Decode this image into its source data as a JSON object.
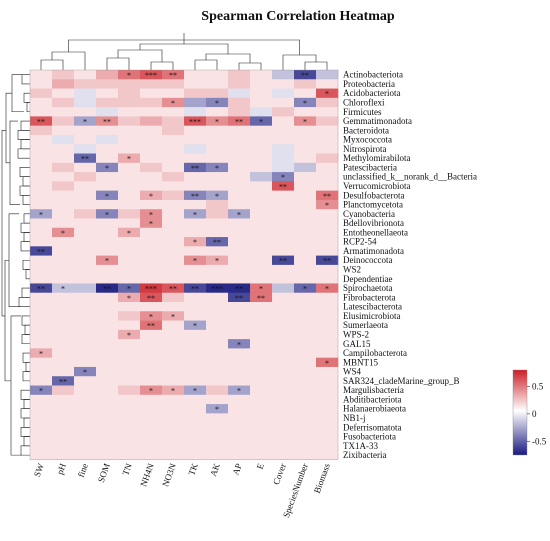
{
  "chart_data": {
    "type": "heatmap",
    "title": "Spearman Correlation Heatmap",
    "columns": [
      "SW",
      "pH",
      "fine",
      "SOM",
      "TN",
      "NH4N",
      "NO3N",
      "TK",
      "AK",
      "AP",
      "E",
      "Cover",
      "SpeciesNumber",
      "Biomass"
    ],
    "rows": [
      "Actinobacteriota",
      "Proteobacteria",
      "Acidobacteriota",
      "Chloroflexi",
      "Firmicutes",
      "Gemmatimonadota",
      "Bacteroidota",
      "Myxococcota",
      "Nitrospirota",
      "Methylomirabilota",
      "Patescibacteria",
      "unclassified_k__norank_d__Bacteria",
      "Verrucomicrobiota",
      "Desulfobacterota",
      "Planctomycetota",
      "Cyanobacteria",
      "Bdellovibrionota",
      "Entotheonellaeota",
      "RCP2-54",
      "Armatimonadota",
      "Deinococcota",
      "WS2",
      "Dependentiae",
      "Spirochaetota",
      "Fibrobacterota",
      "Latescibacterota",
      "Elusimicrobiota",
      "Sumerlaeota",
      "WPS-2",
      "GAL15",
      "Campilobacterota",
      "MBNT15",
      "WS4",
      "SAR324_cladeMarine_group_B",
      "Margulisbacteria",
      "Abditibacteriota",
      "Halanaerobiaeota",
      "NB1-j",
      "Deferrisomatota",
      "Fusobacteriota",
      "TX1A-33",
      "Zixibacteria"
    ],
    "values": [
      [
        0.1,
        0.2,
        0.1,
        0.3,
        0.5,
        0.6,
        0.5,
        0.1,
        0.1,
        0.2,
        0.1,
        -0.2,
        -0.6,
        -0.2
      ],
      [
        0.1,
        0.3,
        0.2,
        0.2,
        0.2,
        0.2,
        0.2,
        0.1,
        0.1,
        0.2,
        0.1,
        0.1,
        0.2,
        0.1
      ],
      [
        0.2,
        0.1,
        -0.1,
        0.1,
        0.2,
        0.1,
        0.1,
        0.2,
        0.2,
        -0.1,
        0.1,
        -0.1,
        0.1,
        0.6
      ],
      [
        0.1,
        0.2,
        -0.1,
        0.2,
        0.2,
        0.2,
        0.4,
        -0.3,
        -0.4,
        0.2,
        0.1,
        0.1,
        -0.4,
        0.2
      ],
      [
        0.1,
        0.1,
        0.1,
        -0.1,
        0.1,
        0.1,
        0.1,
        -0.1,
        0.1,
        0.2,
        -0.1,
        0.2,
        0.1,
        0.1
      ],
      [
        0.6,
        0.2,
        -0.3,
        0.4,
        0.2,
        0.3,
        0.2,
        0.6,
        0.4,
        0.5,
        -0.5,
        0.1,
        0.4,
        0.2
      ],
      [
        0.2,
        0.1,
        0.1,
        0.1,
        0.1,
        0.1,
        0.2,
        0.1,
        0.1,
        0.1,
        0.1,
        0.1,
        0.1,
        0.1
      ],
      [
        0.1,
        -0.1,
        0.1,
        -0.1,
        0.1,
        0.1,
        0.1,
        0.1,
        0.1,
        0.1,
        0.1,
        0.1,
        0.1,
        0.1
      ],
      [
        0.1,
        0.1,
        -0.1,
        0.1,
        0.1,
        0.1,
        0.1,
        -0.1,
        0.1,
        0.1,
        0.1,
        -0.1,
        0.1,
        0.1
      ],
      [
        0.1,
        0.1,
        -0.5,
        0.1,
        0.3,
        0.1,
        0.1,
        0.1,
        0.1,
        0.1,
        0.1,
        -0.1,
        0.1,
        0.2
      ],
      [
        0.1,
        0.2,
        0.1,
        -0.4,
        0.1,
        0.2,
        0.1,
        -0.5,
        -0.4,
        0.1,
        0.1,
        -0.1,
        -0.2,
        0.1
      ],
      [
        0.1,
        0.1,
        0.2,
        0.1,
        0.1,
        0.1,
        0.2,
        0.1,
        0.1,
        0.1,
        -0.2,
        -0.4,
        0.1,
        0.1
      ],
      [
        0.1,
        0.2,
        0.1,
        0.1,
        0.1,
        0.1,
        0.1,
        0.1,
        0.1,
        0.1,
        0.1,
        0.6,
        0.1,
        0.1
      ],
      [
        0.1,
        0.1,
        0.1,
        -0.4,
        0.1,
        0.3,
        0.2,
        -0.4,
        -0.3,
        0.1,
        0.1,
        0.1,
        0.1,
        0.5
      ],
      [
        0.1,
        0.1,
        0.1,
        0.1,
        0.1,
        0.1,
        0.1,
        0.1,
        0.2,
        0.1,
        0.1,
        0.1,
        0.1,
        0.4
      ],
      [
        -0.3,
        0.1,
        0.2,
        -0.4,
        0.2,
        0.4,
        0.1,
        -0.3,
        0.2,
        -0.3,
        0.1,
        0.1,
        0.1,
        0.1
      ],
      [
        0.1,
        0.1,
        0.1,
        0.1,
        0.1,
        0.4,
        0.1,
        0.1,
        0.1,
        0.1,
        0.1,
        0.1,
        0.1,
        0.1
      ],
      [
        0.1,
        0.4,
        0.1,
        0.1,
        0.3,
        0.1,
        0.1,
        0.1,
        0.1,
        0.1,
        0.1,
        0.1,
        0.1,
        0.1
      ],
      [
        0.1,
        0.1,
        0.1,
        0.1,
        0.1,
        0.1,
        0.1,
        0.3,
        -0.5,
        0.1,
        0.1,
        0.1,
        0.1,
        0.1
      ],
      [
        -0.6,
        0.1,
        0.1,
        0.1,
        0.1,
        0.1,
        0.1,
        0.1,
        0.1,
        0.1,
        0.1,
        0.1,
        0.1,
        0.1
      ],
      [
        0.1,
        0.1,
        0.1,
        0.4,
        0.1,
        0.1,
        0.1,
        0.4,
        0.3,
        0.1,
        0.1,
        -0.6,
        0.1,
        -0.6
      ],
      [
        0.1,
        0.1,
        0.1,
        0.1,
        0.1,
        0.1,
        0.1,
        0.1,
        0.1,
        0.1,
        0.1,
        0.1,
        0.1,
        0.1
      ],
      [
        0.1,
        0.1,
        0.1,
        0.1,
        0.1,
        0.1,
        0.1,
        0.1,
        0.1,
        0.1,
        0.1,
        0.1,
        0.1,
        0.1
      ],
      [
        -0.6,
        -0.2,
        -0.2,
        -0.7,
        -0.5,
        0.7,
        0.6,
        -0.6,
        -0.7,
        -0.7,
        0.5,
        -0.2,
        -0.5,
        0.5
      ],
      [
        0.1,
        0.1,
        0.1,
        0.1,
        0.3,
        0.6,
        0.2,
        0.1,
        0.1,
        -0.6,
        0.5,
        0.1,
        0.1,
        0.1
      ],
      [
        0.1,
        0.1,
        0.1,
        0.1,
        0.1,
        0.1,
        0.1,
        0.1,
        0.1,
        0.1,
        0.1,
        0.1,
        0.1,
        0.1
      ],
      [
        0.1,
        0.1,
        0.1,
        0.1,
        0.2,
        0.4,
        0.3,
        0.1,
        0.1,
        0.1,
        0.1,
        0.1,
        0.1,
        0.1
      ],
      [
        0.1,
        0.1,
        0.1,
        0.1,
        0.1,
        0.5,
        0.1,
        -0.3,
        0.1,
        0.1,
        0.1,
        0.1,
        0.1,
        0.1
      ],
      [
        0.1,
        0.1,
        0.1,
        0.1,
        0.3,
        0.1,
        0.1,
        0.1,
        0.1,
        0.1,
        0.1,
        0.1,
        0.1,
        0.1
      ],
      [
        0.1,
        0.1,
        0.1,
        0.1,
        0.1,
        0.1,
        0.1,
        0.1,
        0.1,
        -0.4,
        0.1,
        0.1,
        0.1,
        0.1
      ],
      [
        0.3,
        0.1,
        0.1,
        0.1,
        0.1,
        0.1,
        0.1,
        0.1,
        0.1,
        0.1,
        0.1,
        0.1,
        0.1,
        0.1
      ],
      [
        0.1,
        0.1,
        0.1,
        0.1,
        0.1,
        0.1,
        0.1,
        0.1,
        0.1,
        0.1,
        0.1,
        0.1,
        0.1,
        0.5
      ],
      [
        0.1,
        0.1,
        -0.4,
        0.1,
        0.1,
        0.1,
        0.1,
        0.1,
        0.1,
        0.1,
        0.1,
        0.1,
        0.1,
        0.1
      ],
      [
        0.1,
        -0.5,
        0.1,
        0.1,
        0.1,
        0.1,
        0.1,
        0.1,
        0.1,
        0.1,
        0.1,
        0.1,
        0.1,
        0.1
      ],
      [
        -0.4,
        0.2,
        0.1,
        0.1,
        0.2,
        0.4,
        0.3,
        -0.3,
        0.2,
        -0.3,
        0.1,
        0.1,
        0.1,
        0.1
      ],
      [
        0.1,
        0.1,
        0.1,
        0.1,
        0.1,
        0.1,
        0.1,
        0.1,
        0.1,
        0.1,
        0.1,
        0.1,
        0.1,
        0.1
      ],
      [
        0.1,
        0.1,
        0.1,
        0.1,
        0.1,
        0.1,
        0.1,
        0.1,
        -0.3,
        0.1,
        0.1,
        0.1,
        0.1,
        0.1
      ],
      [
        0.1,
        0.1,
        0.1,
        0.1,
        0.1,
        0.1,
        0.1,
        0.1,
        0.1,
        0.1,
        0.1,
        0.1,
        0.1,
        0.1
      ],
      [
        0.1,
        0.1,
        0.1,
        0.1,
        0.1,
        0.1,
        0.1,
        0.1,
        0.1,
        0.1,
        0.1,
        0.1,
        0.1,
        0.1
      ],
      [
        0.1,
        0.1,
        0.1,
        0.1,
        0.1,
        0.1,
        0.1,
        0.1,
        0.1,
        0.1,
        0.1,
        0.1,
        0.1,
        0.1
      ],
      [
        0.1,
        0.1,
        0.1,
        0.1,
        0.1,
        0.1,
        0.1,
        0.1,
        0.1,
        0.1,
        0.1,
        0.1,
        0.1,
        0.1
      ],
      [
        0.1,
        0.1,
        0.1,
        0.1,
        0.1,
        0.1,
        0.1,
        0.1,
        0.1,
        0.1,
        0.1,
        0.1,
        0.1,
        0.1
      ]
    ],
    "significance": [
      {
        "row": 0,
        "col": 4,
        "mark": "*"
      },
      {
        "row": 0,
        "col": 5,
        "mark": "***"
      },
      {
        "row": 0,
        "col": 6,
        "mark": "**"
      },
      {
        "row": 0,
        "col": 12,
        "mark": "**"
      },
      {
        "row": 2,
        "col": 13,
        "mark": "*"
      },
      {
        "row": 3,
        "col": 6,
        "mark": "*"
      },
      {
        "row": 3,
        "col": 8,
        "mark": "*"
      },
      {
        "row": 3,
        "col": 12,
        "mark": "*"
      },
      {
        "row": 5,
        "col": 0,
        "mark": "**"
      },
      {
        "row": 5,
        "col": 2,
        "mark": "*"
      },
      {
        "row": 5,
        "col": 3,
        "mark": "**"
      },
      {
        "row": 5,
        "col": 7,
        "mark": "***"
      },
      {
        "row": 5,
        "col": 8,
        "mark": "*"
      },
      {
        "row": 5,
        "col": 9,
        "mark": "**"
      },
      {
        "row": 5,
        "col": 10,
        "mark": "*"
      },
      {
        "row": 5,
        "col": 12,
        "mark": "*"
      },
      {
        "row": 9,
        "col": 2,
        "mark": "**"
      },
      {
        "row": 9,
        "col": 4,
        "mark": "*"
      },
      {
        "row": 10,
        "col": 3,
        "mark": "*"
      },
      {
        "row": 10,
        "col": 7,
        "mark": "**"
      },
      {
        "row": 10,
        "col": 8,
        "mark": "*"
      },
      {
        "row": 11,
        "col": 11,
        "mark": "*"
      },
      {
        "row": 12,
        "col": 11,
        "mark": "**"
      },
      {
        "row": 13,
        "col": 3,
        "mark": "*"
      },
      {
        "row": 13,
        "col": 5,
        "mark": "*"
      },
      {
        "row": 13,
        "col": 7,
        "mark": "**"
      },
      {
        "row": 13,
        "col": 8,
        "mark": "*"
      },
      {
        "row": 13,
        "col": 13,
        "mark": "**"
      },
      {
        "row": 14,
        "col": 13,
        "mark": "*"
      },
      {
        "row": 15,
        "col": 0,
        "mark": "*"
      },
      {
        "row": 15,
        "col": 3,
        "mark": "*"
      },
      {
        "row": 15,
        "col": 5,
        "mark": "*"
      },
      {
        "row": 15,
        "col": 7,
        "mark": "*"
      },
      {
        "row": 15,
        "col": 9,
        "mark": "*"
      },
      {
        "row": 16,
        "col": 5,
        "mark": "*"
      },
      {
        "row": 17,
        "col": 1,
        "mark": "*"
      },
      {
        "row": 17,
        "col": 4,
        "mark": "*"
      },
      {
        "row": 18,
        "col": 7,
        "mark": "*"
      },
      {
        "row": 18,
        "col": 8,
        "mark": "**"
      },
      {
        "row": 19,
        "col": 0,
        "mark": "**"
      },
      {
        "row": 20,
        "col": 3,
        "mark": "*"
      },
      {
        "row": 20,
        "col": 7,
        "mark": "*"
      },
      {
        "row": 20,
        "col": 8,
        "mark": "*"
      },
      {
        "row": 20,
        "col": 11,
        "mark": "**"
      },
      {
        "row": 20,
        "col": 13,
        "mark": "**"
      },
      {
        "row": 23,
        "col": 0,
        "mark": "**"
      },
      {
        "row": 23,
        "col": 1,
        "mark": "*"
      },
      {
        "row": 23,
        "col": 3,
        "mark": "**"
      },
      {
        "row": 23,
        "col": 4,
        "mark": "*"
      },
      {
        "row": 23,
        "col": 5,
        "mark": "***"
      },
      {
        "row": 23,
        "col": 6,
        "mark": "**"
      },
      {
        "row": 23,
        "col": 7,
        "mark": "**"
      },
      {
        "row": 23,
        "col": 8,
        "mark": "***"
      },
      {
        "row": 23,
        "col": 9,
        "mark": "**"
      },
      {
        "row": 23,
        "col": 10,
        "mark": "*"
      },
      {
        "row": 23,
        "col": 12,
        "mark": "*"
      },
      {
        "row": 23,
        "col": 13,
        "mark": "*"
      },
      {
        "row": 24,
        "col": 4,
        "mark": "*"
      },
      {
        "row": 24,
        "col": 5,
        "mark": "**"
      },
      {
        "row": 24,
        "col": 9,
        "mark": "**"
      },
      {
        "row": 24,
        "col": 10,
        "mark": "**"
      },
      {
        "row": 26,
        "col": 5,
        "mark": "*"
      },
      {
        "row": 26,
        "col": 6,
        "mark": "*"
      },
      {
        "row": 27,
        "col": 5,
        "mark": "**"
      },
      {
        "row": 27,
        "col": 7,
        "mark": "*"
      },
      {
        "row": 28,
        "col": 4,
        "mark": "*"
      },
      {
        "row": 29,
        "col": 9,
        "mark": "*"
      },
      {
        "row": 30,
        "col": 0,
        "mark": "*"
      },
      {
        "row": 31,
        "col": 13,
        "mark": "*"
      },
      {
        "row": 32,
        "col": 2,
        "mark": "*"
      },
      {
        "row": 33,
        "col": 1,
        "mark": "**"
      },
      {
        "row": 34,
        "col": 0,
        "mark": "*"
      },
      {
        "row": 34,
        "col": 5,
        "mark": "*"
      },
      {
        "row": 34,
        "col": 6,
        "mark": "*"
      },
      {
        "row": 34,
        "col": 7,
        "mark": "*"
      },
      {
        "row": 34,
        "col": 9,
        "mark": "*"
      },
      {
        "row": 36,
        "col": 8,
        "mark": "*"
      }
    ],
    "colorbar": {
      "low_color": "#1a1a80",
      "mid_color": "#ffffff",
      "high_color": "#cc1f26",
      "ticks": [
        "0.5",
        "0",
        "-0.5"
      ],
      "range": [
        -0.75,
        0.8
      ]
    },
    "legend_placement": "right",
    "grid": false
  }
}
